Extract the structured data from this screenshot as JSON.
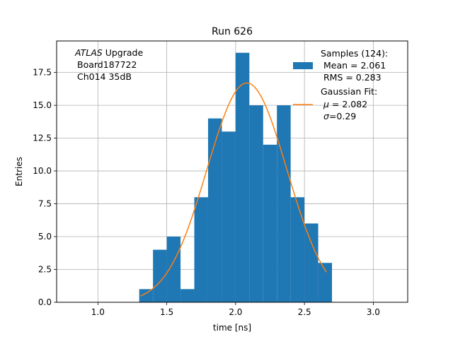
{
  "chart_data": {
    "type": "bar",
    "title": "Run 626",
    "xlabel": "time [ns]",
    "ylabel": "Entries",
    "xlim": [
      0.7,
      3.25
    ],
    "ylim": [
      0,
      19.9
    ],
    "grid": true,
    "xticks": [
      1.0,
      1.5,
      2.0,
      2.5,
      3.0
    ],
    "xtick_labels": [
      "1.0",
      "1.5",
      "2.0",
      "2.5",
      "3.0"
    ],
    "yticks": [
      0,
      2.5,
      5,
      7.5,
      10,
      12.5,
      15,
      17.5
    ],
    "ytick_labels": [
      "0.0",
      "2.5",
      "5.0",
      "7.5",
      "10.0",
      "12.5",
      "15.0",
      "17.5"
    ],
    "annotation": {
      "line1_italic": "ATLAS",
      "line1_rest": " Upgrade",
      "line2": "Board187722",
      "line3": "Ch014 35dB"
    },
    "histogram": {
      "color": "#1f77b4",
      "bin_edges": [
        1.3,
        1.4,
        1.5,
        1.6,
        1.7,
        1.8,
        1.9,
        2.0,
        2.1,
        2.2,
        2.3,
        2.4,
        2.5,
        2.6,
        2.7
      ],
      "counts": [
        1,
        4,
        5,
        1,
        8,
        14,
        13,
        19,
        15,
        12,
        15,
        8,
        6,
        3
      ]
    },
    "fit": {
      "color": "#ff7f0e",
      "mu": 2.082,
      "sigma": 0.29,
      "amplitude": 16.7,
      "x_range": [
        1.31,
        2.66
      ]
    },
    "legend": {
      "placement": "upper-right",
      "samples_lines": [
        "Samples (124):",
        " Mean = 2.061",
        " RMS = 0.283"
      ],
      "fit_title": "Gaussian Fit:",
      "fit_mu_symbol": "μ",
      "fit_mu_value": " = 2.082",
      "fit_sigma_symbol": "σ",
      "fit_sigma_value": "=0.29"
    }
  }
}
